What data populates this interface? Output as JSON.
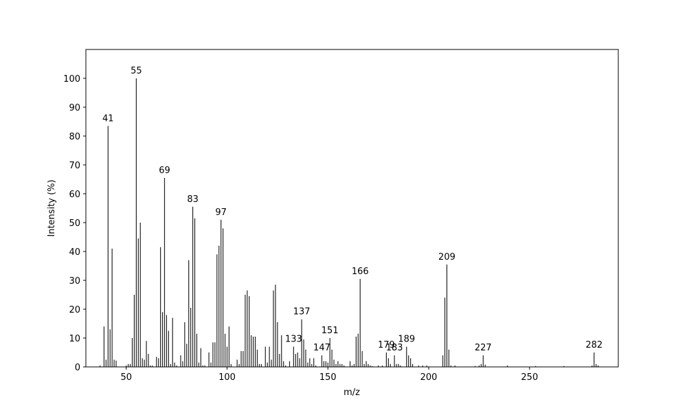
{
  "chart_data": {
    "type": "bar",
    "x_label": "m/z",
    "y_label": "Intensity (%)",
    "color": "#222222",
    "x": [
      37,
      39,
      40,
      41,
      42,
      43,
      44,
      45,
      50,
      51,
      52,
      53,
      54,
      55,
      56,
      57,
      58,
      59,
      60,
      61,
      62,
      63,
      65,
      66,
      67,
      68,
      69,
      70,
      71,
      72,
      73,
      74,
      75,
      77,
      78,
      79,
      80,
      81,
      82,
      83,
      84,
      85,
      86,
      87,
      88,
      89,
      91,
      92,
      93,
      94,
      95,
      96,
      97,
      98,
      99,
      100,
      101,
      102,
      105,
      106,
      107,
      108,
      109,
      110,
      111,
      112,
      113,
      114,
      115,
      116,
      117,
      119,
      120,
      121,
      122,
      123,
      124,
      125,
      126,
      127,
      128,
      129,
      131,
      133,
      134,
      135,
      136,
      137,
      138,
      139,
      140,
      141,
      142,
      143,
      144,
      147,
      148,
      149,
      150,
      151,
      152,
      153,
      154,
      155,
      156,
      157,
      158,
      161,
      162,
      163,
      164,
      165,
      166,
      167,
      168,
      169,
      170,
      171,
      172,
      175,
      177,
      179,
      180,
      181,
      183,
      184,
      185,
      186,
      189,
      190,
      191,
      192,
      195,
      197,
      199,
      207,
      208,
      209,
      210,
      211,
      213,
      223,
      225,
      226,
      227,
      228,
      239,
      253,
      267,
      281,
      282,
      283,
      284
    ],
    "values": [
      0.5,
      14,
      2.5,
      83.5,
      13,
      41,
      2.5,
      2.2,
      0.5,
      1,
      1,
      10,
      25,
      100,
      44.5,
      50,
      3,
      2.5,
      9,
      4.5,
      0.5,
      0.5,
      3.5,
      3,
      41.5,
      19,
      65.5,
      18,
      12.5,
      1,
      17,
      1.5,
      0.5,
      4,
      2,
      15.5,
      8,
      37,
      20.5,
      55.5,
      51.5,
      11.5,
      1.5,
      6.5,
      0.5,
      0.5,
      5,
      1.5,
      8.5,
      8.5,
      39,
      42,
      51,
      48,
      11.5,
      7,
      14,
      1,
      2.5,
      1,
      5.5,
      5.5,
      25,
      26.5,
      24.5,
      11,
      10.5,
      10.5,
      6,
      1,
      1,
      7,
      1.5,
      7,
      2.5,
      26.5,
      28.5,
      15.5,
      4.5,
      11,
      2,
      0.5,
      2,
      7,
      4.5,
      5,
      3,
      16.5,
      9.5,
      6,
      1.5,
      3,
      1,
      3,
      0.5,
      4,
      2,
      2,
      1.5,
      10,
      6,
      2.5,
      1,
      2,
      1,
      1,
      0.5,
      2,
      0.5,
      1,
      10.5,
      11.5,
      30.5,
      5.5,
      1,
      2,
      1,
      0.5,
      0.3,
      0.5,
      0.5,
      5,
      3,
      1,
      4,
      1,
      1,
      0.5,
      7,
      4,
      3,
      1,
      0.5,
      0.5,
      0.5,
      4,
      24,
      35.5,
      6,
      0.5,
      0.5,
      0.3,
      0.5,
      1,
      4,
      0.8,
      0.5,
      0.3,
      0.3,
      0.5,
      5,
      1,
      0.5
    ],
    "peak_labels": [
      41,
      55,
      69,
      83,
      97,
      133,
      137,
      147,
      151,
      166,
      179,
      183,
      189,
      209,
      227,
      282
    ],
    "xlim": [
      30,
      294
    ],
    "ylim": [
      0,
      110
    ],
    "xticks": [
      50,
      100,
      150,
      200,
      250
    ],
    "yticks": [
      0,
      10,
      20,
      30,
      40,
      50,
      60,
      70,
      80,
      90,
      100
    ]
  }
}
